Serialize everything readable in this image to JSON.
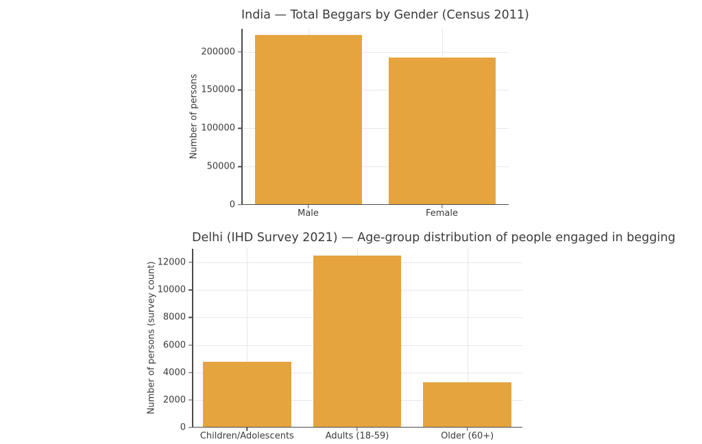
{
  "figure": {
    "background": "#ffffff",
    "text_color": "#3a3a3a",
    "axis_color": "#4a4a4a",
    "grid_color": "#d0d0d0",
    "bar_color": "#e5a43e"
  },
  "chart_data": [
    {
      "type": "bar",
      "title": "India — Total Beggars by Gender (Census 2011)",
      "ylabel": "Number of persons",
      "xlabel": "",
      "categories": [
        "Male",
        "Female"
      ],
      "values": [
        221673,
        191997
      ],
      "yticks": [
        0,
        50000,
        100000,
        150000,
        200000
      ],
      "ylim": [
        0,
        230000
      ],
      "grid": "dotted, horizontal and vertical, behind bars",
      "legend": "none",
      "bar_color": "#e5a43e"
    },
    {
      "type": "bar",
      "title": "Delhi (IHD Survey 2021) — Age-group distribution of people engaged in begging",
      "ylabel": "Number of persons (survey count)",
      "xlabel": "",
      "categories": [
        "Children/Adolescents",
        "Adults (18-59)",
        "Older (60+)"
      ],
      "values": [
        4800,
        12500,
        3300
      ],
      "yticks": [
        0,
        2000,
        4000,
        6000,
        8000,
        10000,
        12000
      ],
      "ylim": [
        0,
        13000
      ],
      "grid": "dotted, horizontal and vertical, behind bars",
      "legend": "none",
      "bar_color": "#e5a43e"
    }
  ]
}
